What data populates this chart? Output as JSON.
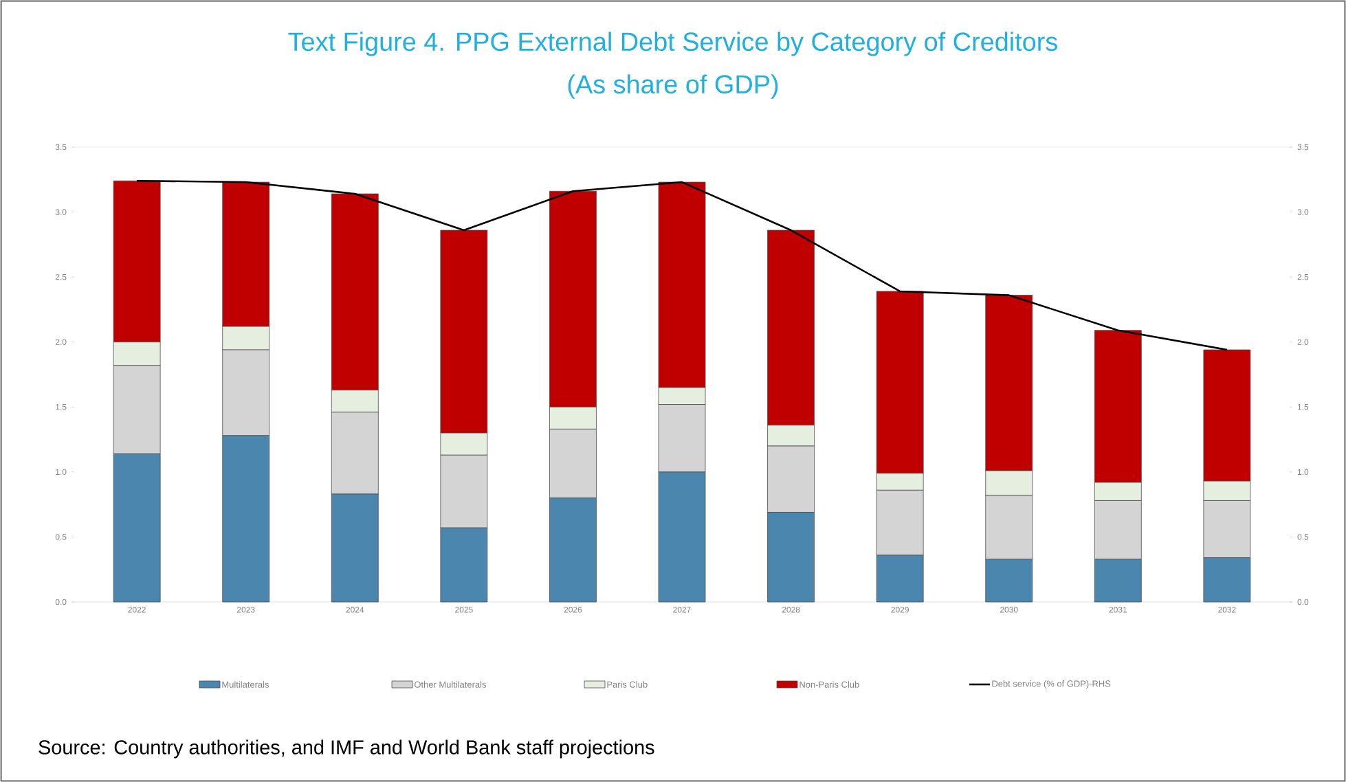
{
  "chart_data": {
    "type": "bar",
    "stacked": true,
    "title": "Text Figure 4. PPG External Debt Service by Category of Creditors",
    "subtitle": "(As share of GDP)",
    "categories": [
      "2022",
      "2023",
      "2024",
      "2025",
      "2026",
      "2027",
      "2028",
      "2029",
      "2030",
      "2031",
      "2032"
    ],
    "series": [
      {
        "name": "Multilaterals",
        "color": "#4a86ad",
        "values": [
          1.14,
          1.28,
          0.83,
          0.57,
          0.8,
          1.0,
          0.69,
          0.36,
          0.33,
          0.33,
          0.34
        ]
      },
      {
        "name": "Other Multilaterals",
        "color": "#d4d4d4",
        "values": [
          0.68,
          0.66,
          0.63,
          0.56,
          0.53,
          0.52,
          0.51,
          0.5,
          0.49,
          0.45,
          0.44
        ]
      },
      {
        "name": "Paris Club",
        "color": "#e6eedf",
        "values": [
          0.18,
          0.18,
          0.17,
          0.17,
          0.17,
          0.13,
          0.16,
          0.13,
          0.19,
          0.14,
          0.15
        ]
      },
      {
        "name": "Non-Paris Club",
        "color": "#c00000",
        "values": [
          1.24,
          1.11,
          1.51,
          1.56,
          1.66,
          1.58,
          1.5,
          1.4,
          1.35,
          1.17,
          1.01
        ]
      },
      {
        "name": "Debt service (% of GDP)-RHS",
        "type": "line",
        "axis": "y2",
        "color": "#000000",
        "values": [
          3.24,
          3.23,
          3.14,
          2.86,
          3.16,
          3.23,
          2.86,
          2.39,
          2.36,
          2.09,
          1.94
        ]
      }
    ],
    "ylim": [
      0,
      3.5
    ],
    "yticks": [
      {
        "value": 0,
        "label": "0.0"
      },
      {
        "value": 0.5,
        "label": "0.5"
      },
      {
        "value": 1,
        "label": "1.0"
      },
      {
        "value": 1.5,
        "label": "1.5"
      },
      {
        "value": 2,
        "label": "2.0"
      },
      {
        "value": 2.5,
        "label": "2.5"
      },
      {
        "value": 3,
        "label": "3.0"
      },
      {
        "value": 3.5,
        "label": "3.5"
      }
    ],
    "y2lim": [
      0,
      3.5
    ],
    "y2ticks": [
      {
        "value": 0,
        "label": "0.0"
      },
      {
        "value": 0.5,
        "label": "0.5"
      },
      {
        "value": 1,
        "label": "1.0"
      },
      {
        "value": 1.5,
        "label": "1.5"
      },
      {
        "value": 2,
        "label": "2.0"
      },
      {
        "value": 2.5,
        "label": "2.5"
      },
      {
        "value": 3,
        "label": "3.0"
      },
      {
        "value": 3.5,
        "label": "3.5"
      }
    ],
    "legend": "bottom",
    "annotations": [
      "Source: Country authorities, and IMF and World Bank staff projections"
    ]
  }
}
